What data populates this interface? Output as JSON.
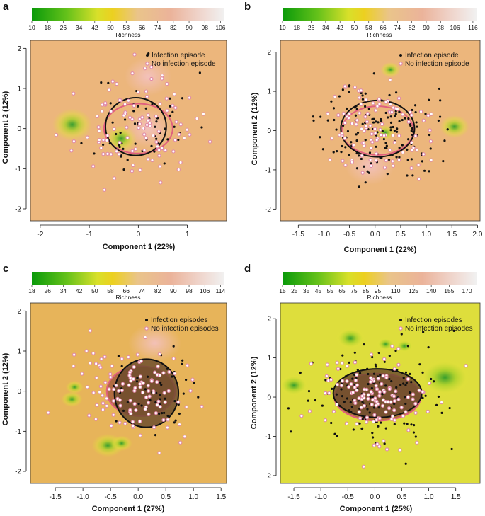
{
  "figure": {
    "panel_labels": [
      "a",
      "b",
      "c",
      "d"
    ]
  },
  "chart_data": [
    {
      "type": "scatter",
      "panel": "a",
      "xlabel": "Component 1 (22%)",
      "ylabel": "Component 2 (12%)",
      "xlim": [
        -2.2,
        1.8
      ],
      "ylim": [
        -2.3,
        2.2
      ],
      "xticks": [
        "-2",
        "-1",
        "0",
        "1"
      ],
      "xtick_values": [
        -2,
        -1,
        0,
        1
      ],
      "yticks": [
        "-2",
        "-1",
        "0",
        "1",
        "2"
      ],
      "ytick_values": [
        -2,
        -1,
        0,
        1,
        2
      ],
      "colorbar": {
        "title": "Richness",
        "ticks": [
          "10",
          "18",
          "26",
          "34",
          "42",
          "50",
          "58",
          "66",
          "74",
          "82",
          "90",
          "98",
          "106"
        ],
        "min": 10,
        "max": 108
      },
      "legend": [
        "Infection episode",
        "No infection episode"
      ],
      "background": "#ecb67c",
      "ellipses": [
        {
          "series": "No infection episode",
          "cx": 0.0,
          "cy": 0.0,
          "rx": 0.7,
          "ry": 0.62,
          "fill": "none"
        },
        {
          "series": "Infection episode",
          "cx": -0.05,
          "cy": 0.05,
          "rx": 0.62,
          "ry": 0.72,
          "fill": "none"
        }
      ],
      "hotspots": [
        {
          "x": -0.35,
          "y": -0.25,
          "r": 0.2,
          "level": "low"
        },
        {
          "x": -1.35,
          "y": 0.1,
          "r": 0.25,
          "level": "low"
        },
        {
          "x": 0.2,
          "y": 1.3,
          "r": 0.3,
          "level": "high"
        },
        {
          "x": 0.2,
          "y": 0.0,
          "r": 0.3,
          "level": "high"
        }
      ],
      "series": [
        {
          "name": "Infection episode",
          "n": 60,
          "seed": 11,
          "cx": 0.1,
          "cy": 0.1,
          "sx": 0.5,
          "sy": 0.65
        },
        {
          "name": "No infection episode",
          "n": 110,
          "seed": 23,
          "cx": -0.05,
          "cy": 0.0,
          "sx": 0.6,
          "sy": 0.6
        }
      ]
    },
    {
      "type": "scatter",
      "panel": "b",
      "xlabel": "Component 1 (22%)",
      "ylabel": "Component 2 (12%)",
      "xlim": [
        -1.85,
        2.05
      ],
      "ylim": [
        -2.3,
        2.3
      ],
      "xticks": [
        "-1.5",
        "-1.0",
        "-0.5",
        "0.0",
        "0.5",
        "1.0",
        "1.5",
        "2.0"
      ],
      "xtick_values": [
        -1.5,
        -1.0,
        -0.5,
        0.0,
        0.5,
        1.0,
        1.5,
        2.0
      ],
      "yticks": [
        "-2",
        "-1",
        "0",
        "1",
        "2"
      ],
      "ytick_values": [
        -2,
        -1,
        0,
        1,
        2
      ],
      "colorbar": {
        "title": "Richness",
        "ticks": [
          "10",
          "18",
          "26",
          "34",
          "42",
          "50",
          "58",
          "66",
          "74",
          "82",
          "90",
          "98",
          "106",
          "116"
        ],
        "min": 10,
        "max": 118
      },
      "legend": [
        "Infection episode",
        "No infection episode"
      ],
      "background": "#ecb67c",
      "ellipses": [
        {
          "series": "No infection episode",
          "cx": 0.05,
          "cy": 0.0,
          "rx": 0.7,
          "ry": 0.62,
          "fill": "none"
        },
        {
          "series": "Infection episode",
          "cx": 0.05,
          "cy": 0.05,
          "rx": 0.72,
          "ry": 0.72,
          "fill": "none"
        }
      ],
      "hotspots": [
        {
          "x": 0.3,
          "y": 1.55,
          "r": 0.12,
          "level": "low"
        },
        {
          "x": 0.2,
          "y": -0.05,
          "r": 0.12,
          "level": "low"
        },
        {
          "x": 1.55,
          "y": 0.1,
          "r": 0.18,
          "level": "low"
        },
        {
          "x": -0.1,
          "y": -0.9,
          "r": 0.3,
          "level": "high"
        }
      ],
      "series": [
        {
          "name": "Infection episode",
          "n": 150,
          "seed": 37,
          "cx": 0.1,
          "cy": 0.0,
          "sx": 0.55,
          "sy": 0.6
        },
        {
          "name": "No infection episode",
          "n": 110,
          "seed": 51,
          "cx": 0.0,
          "cy": 0.0,
          "sx": 0.55,
          "sy": 0.6
        }
      ]
    },
    {
      "type": "scatter",
      "panel": "c",
      "xlabel": "Component 1 (27%)",
      "ylabel": "Component 2 (12%)",
      "xlim": [
        -1.95,
        1.6
      ],
      "ylim": [
        -2.3,
        2.2
      ],
      "xticks": [
        "-1.5",
        "-1.0",
        "-0.5",
        "0.0",
        "0.5",
        "1.0",
        "1.5"
      ],
      "xtick_values": [
        -1.5,
        -1.0,
        -0.5,
        0.0,
        0.5,
        1.0,
        1.5
      ],
      "yticks": [
        "-2",
        "-1",
        "0",
        "1",
        "2"
      ],
      "ytick_values": [
        -2,
        -1,
        0,
        1,
        2
      ],
      "colorbar": {
        "title": "Richness",
        "ticks": [
          "18",
          "26",
          "34",
          "42",
          "50",
          "58",
          "66",
          "74",
          "82",
          "90",
          "98",
          "106",
          "114"
        ],
        "min": 18,
        "max": 116
      },
      "legend": [
        "Infection episodes",
        "No infection episodes"
      ],
      "background": "#e7b45a",
      "ellipses": [
        {
          "series": "No infection episodes",
          "cx": 0.05,
          "cy": 0.0,
          "rx": 0.62,
          "ry": 0.62,
          "fill": "#a45a3c"
        },
        {
          "series": "Infection episodes",
          "cx": 0.15,
          "cy": -0.05,
          "rx": 0.58,
          "ry": 0.85,
          "fill": "#6a4a2c"
        }
      ],
      "hotspots": [
        {
          "x": -0.55,
          "y": -1.35,
          "r": 0.18,
          "level": "low"
        },
        {
          "x": -0.3,
          "y": -1.3,
          "r": 0.12,
          "level": "low"
        },
        {
          "x": -1.2,
          "y": -0.2,
          "r": 0.12,
          "level": "low"
        },
        {
          "x": -1.15,
          "y": 0.1,
          "r": 0.1,
          "level": "low"
        },
        {
          "x": 0.3,
          "y": 1.2,
          "r": 0.3,
          "level": "high"
        }
      ],
      "series": [
        {
          "name": "Infection episodes",
          "n": 50,
          "seed": 61,
          "cx": 0.25,
          "cy": 0.0,
          "sx": 0.45,
          "sy": 0.6
        },
        {
          "name": "No infection episodes",
          "n": 120,
          "seed": 73,
          "cx": 0.0,
          "cy": 0.0,
          "sx": 0.55,
          "sy": 0.6
        }
      ]
    },
    {
      "type": "scatter",
      "panel": "d",
      "xlabel": "Component 1 (25%)",
      "ylabel": "Component 2 (12%)",
      "xlim": [
        -1.75,
        1.95
      ],
      "ylim": [
        -2.2,
        2.4
      ],
      "xticks": [
        "-1.5",
        "-1.0",
        "-0.5",
        "0.0",
        "0.5",
        "1.0",
        "1.5"
      ],
      "xtick_values": [
        -1.5,
        -1.0,
        -0.5,
        0.0,
        0.5,
        1.0,
        1.5
      ],
      "yticks": [
        "-2",
        "-1",
        "0",
        "1",
        "2"
      ],
      "ytick_values": [
        -2,
        -1,
        0,
        1,
        2
      ],
      "colorbar": {
        "title": "Richness",
        "ticks": [
          "15",
          "25",
          "35",
          "45",
          "55",
          "65",
          "75",
          "85",
          "95",
          "110",
          "125",
          "140",
          "155",
          "170"
        ],
        "min": 15,
        "max": 178
      },
      "legend": [
        "Infection episodes",
        "No infection episodes"
      ],
      "background": "#dede3c",
      "ellipses": [
        {
          "series": "No infection episodes",
          "cx": 0.05,
          "cy": 0.0,
          "rx": 0.8,
          "ry": 0.6,
          "fill": "#a45a3c"
        },
        {
          "series": "Infection episodes",
          "cx": 0.05,
          "cy": 0.1,
          "rx": 0.82,
          "ry": 0.62,
          "fill": "#6a4a2c"
        }
      ],
      "hotspots": [
        {
          "x": 0.2,
          "y": 1.35,
          "r": 0.12,
          "level": "low"
        },
        {
          "x": 0.55,
          "y": 1.3,
          "r": 0.12,
          "level": "low"
        },
        {
          "x": 1.3,
          "y": 0.5,
          "r": 0.35,
          "level": "low"
        },
        {
          "x": -0.45,
          "y": 1.5,
          "r": 0.2,
          "level": "low"
        },
        {
          "x": -1.5,
          "y": 0.3,
          "r": 0.2,
          "level": "low"
        }
      ],
      "series": [
        {
          "name": "Infection episodes",
          "n": 150,
          "seed": 83,
          "cx": 0.0,
          "cy": 0.05,
          "sx": 0.6,
          "sy": 0.65
        },
        {
          "name": "No infection episodes",
          "n": 130,
          "seed": 97,
          "cx": -0.15,
          "cy": 0.0,
          "sx": 0.6,
          "sy": 0.6
        }
      ]
    }
  ]
}
